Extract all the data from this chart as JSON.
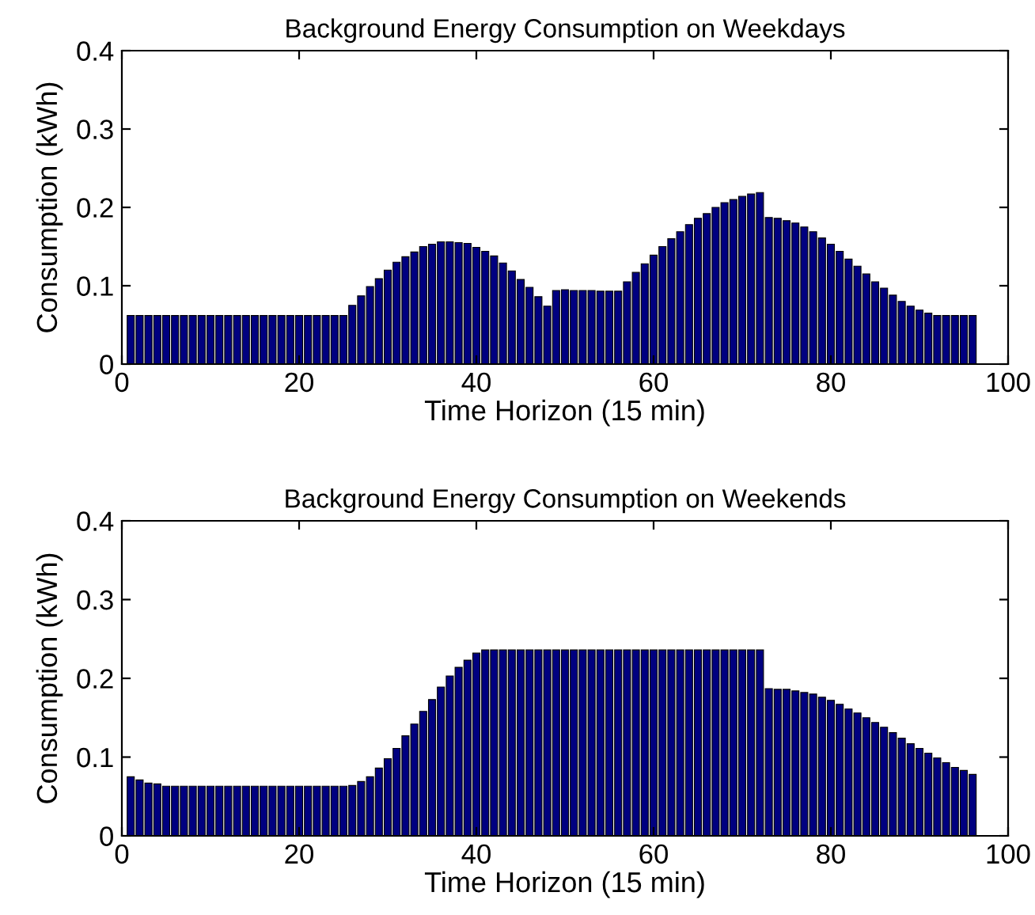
{
  "chart_data": [
    {
      "type": "bar",
      "title": "Background Energy Consumption on Weekdays",
      "xlabel": "Time Horizon (15 min)",
      "ylabel": "Consumption (kWh)",
      "color": "#000080",
      "x": [
        1,
        2,
        3,
        4,
        5,
        6,
        7,
        8,
        9,
        10,
        11,
        12,
        13,
        14,
        15,
        16,
        17,
        18,
        19,
        20,
        21,
        22,
        23,
        24,
        25,
        26,
        27,
        28,
        29,
        30,
        31,
        32,
        33,
        34,
        35,
        36,
        37,
        38,
        39,
        40,
        41,
        42,
        43,
        44,
        45,
        46,
        47,
        48,
        49,
        50,
        51,
        52,
        53,
        54,
        55,
        56,
        57,
        58,
        59,
        60,
        61,
        62,
        63,
        64,
        65,
        66,
        67,
        68,
        69,
        70,
        71,
        72,
        73,
        74,
        75,
        76,
        77,
        78,
        79,
        80,
        81,
        82,
        83,
        84,
        85,
        86,
        87,
        88,
        89,
        90,
        91,
        92,
        93,
        94,
        95,
        96
      ],
      "values": [
        0.062,
        0.062,
        0.062,
        0.062,
        0.062,
        0.062,
        0.062,
        0.062,
        0.062,
        0.062,
        0.062,
        0.062,
        0.062,
        0.062,
        0.062,
        0.062,
        0.062,
        0.062,
        0.062,
        0.062,
        0.062,
        0.062,
        0.062,
        0.062,
        0.062,
        0.075,
        0.087,
        0.099,
        0.109,
        0.12,
        0.13,
        0.137,
        0.143,
        0.15,
        0.153,
        0.156,
        0.156,
        0.155,
        0.154,
        0.149,
        0.144,
        0.138,
        0.129,
        0.119,
        0.108,
        0.098,
        0.086,
        0.074,
        0.094,
        0.095,
        0.094,
        0.094,
        0.094,
        0.093,
        0.093,
        0.093,
        0.105,
        0.117,
        0.128,
        0.139,
        0.15,
        0.16,
        0.169,
        0.178,
        0.186,
        0.192,
        0.2,
        0.206,
        0.21,
        0.214,
        0.217,
        0.219,
        0.187,
        0.186,
        0.183,
        0.18,
        0.175,
        0.169,
        0.161,
        0.153,
        0.144,
        0.134,
        0.125,
        0.115,
        0.105,
        0.097,
        0.088,
        0.08,
        0.074,
        0.069,
        0.065,
        0.062,
        0.062,
        0.062,
        0.062,
        0.062
      ],
      "xlim": [
        0,
        100
      ],
      "xticks": [
        0,
        20,
        40,
        60,
        80,
        100
      ],
      "ylim": [
        0,
        0.4
      ],
      "yticks": [
        0,
        0.1,
        0.2,
        0.3,
        0.4
      ]
    },
    {
      "type": "bar",
      "title": "Background Energy Consumption on Weekends",
      "xlabel": "Time Horizon (15 min)",
      "ylabel": "Consumption (kWh)",
      "color": "#000080",
      "x": [
        1,
        2,
        3,
        4,
        5,
        6,
        7,
        8,
        9,
        10,
        11,
        12,
        13,
        14,
        15,
        16,
        17,
        18,
        19,
        20,
        21,
        22,
        23,
        24,
        25,
        26,
        27,
        28,
        29,
        30,
        31,
        32,
        33,
        34,
        35,
        36,
        37,
        38,
        39,
        40,
        41,
        42,
        43,
        44,
        45,
        46,
        47,
        48,
        49,
        50,
        51,
        52,
        53,
        54,
        55,
        56,
        57,
        58,
        59,
        60,
        61,
        62,
        63,
        64,
        65,
        66,
        67,
        68,
        69,
        70,
        71,
        72,
        73,
        74,
        75,
        76,
        77,
        78,
        79,
        80,
        81,
        82,
        83,
        84,
        85,
        86,
        87,
        88,
        89,
        90,
        91,
        92,
        93,
        94,
        95,
        96
      ],
      "values": [
        0.075,
        0.071,
        0.067,
        0.066,
        0.063,
        0.063,
        0.063,
        0.063,
        0.063,
        0.063,
        0.063,
        0.063,
        0.063,
        0.063,
        0.063,
        0.063,
        0.063,
        0.063,
        0.063,
        0.063,
        0.063,
        0.063,
        0.063,
        0.063,
        0.063,
        0.064,
        0.069,
        0.075,
        0.086,
        0.098,
        0.111,
        0.127,
        0.142,
        0.158,
        0.173,
        0.189,
        0.203,
        0.214,
        0.223,
        0.232,
        0.236,
        0.236,
        0.236,
        0.236,
        0.236,
        0.236,
        0.236,
        0.236,
        0.236,
        0.236,
        0.236,
        0.236,
        0.236,
        0.236,
        0.236,
        0.236,
        0.236,
        0.236,
        0.236,
        0.236,
        0.236,
        0.236,
        0.236,
        0.236,
        0.236,
        0.236,
        0.236,
        0.236,
        0.236,
        0.236,
        0.236,
        0.236,
        0.187,
        0.186,
        0.186,
        0.184,
        0.182,
        0.18,
        0.176,
        0.172,
        0.167,
        0.161,
        0.156,
        0.15,
        0.144,
        0.138,
        0.131,
        0.124,
        0.117,
        0.111,
        0.105,
        0.099,
        0.093,
        0.087,
        0.083,
        0.078
      ],
      "xlim": [
        0,
        100
      ],
      "xticks": [
        0,
        20,
        40,
        60,
        80,
        100
      ],
      "ylim": [
        0,
        0.4
      ],
      "yticks": [
        0,
        0.1,
        0.2,
        0.3,
        0.4
      ]
    }
  ]
}
